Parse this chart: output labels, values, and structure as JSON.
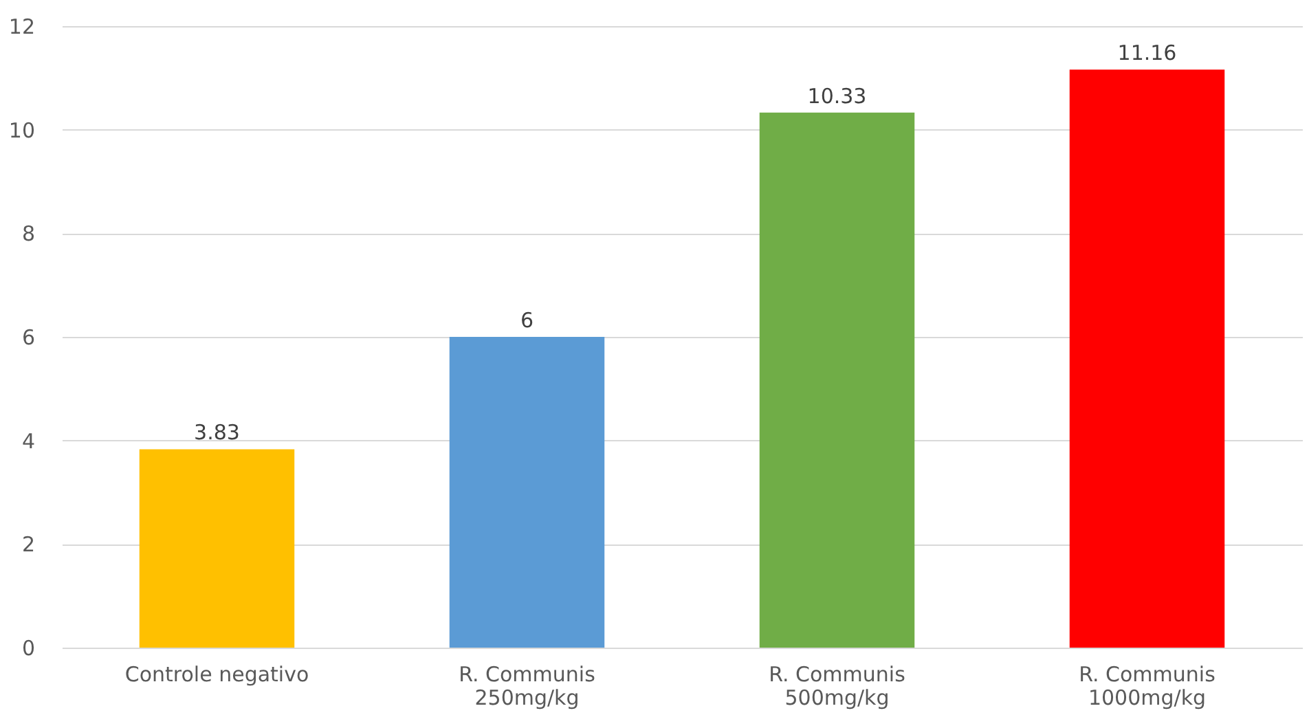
{
  "chart_data": {
    "type": "bar",
    "categories": [
      "Controle negativo",
      "R. Communis\n250mg/kg",
      "R. Communis\n500mg/kg",
      "R. Communis\n1000mg/kg"
    ],
    "values": [
      3.83,
      6,
      10.33,
      11.16
    ],
    "colors": [
      "#ffc000",
      "#5b9bd5",
      "#70ad47",
      "#ff0000"
    ],
    "ylim": [
      0,
      12
    ],
    "yticks": [
      0,
      2,
      4,
      6,
      8,
      10,
      12
    ],
    "grid": "y",
    "data_labels": true
  }
}
